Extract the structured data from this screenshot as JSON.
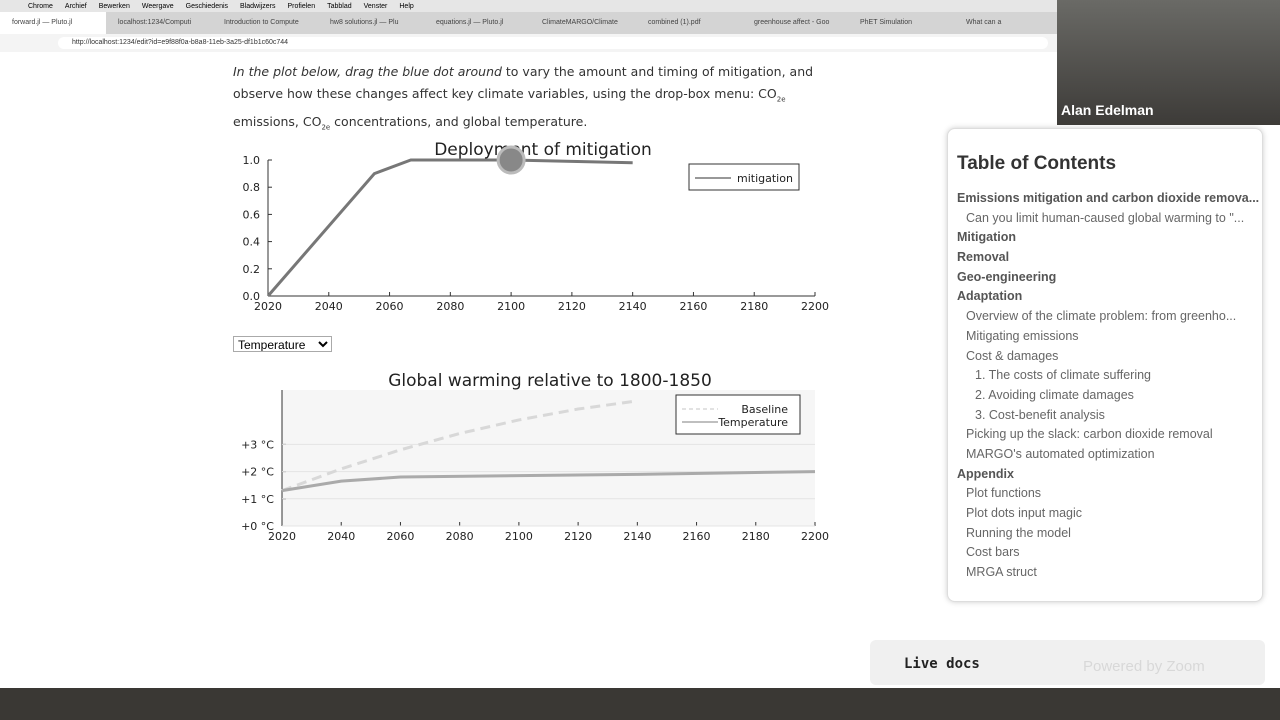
{
  "browser": {
    "menu": [
      "Chrome",
      "Archief",
      "Bewerken",
      "Weergave",
      "Geschiedenis",
      "Bladwijzers",
      "Profielen",
      "Tabblad",
      "Venster",
      "Help"
    ],
    "tabs": [
      "forward.jl — Pluto.jl",
      "localhost:1234/Computi",
      "Introduction to Compute",
      "hw8 solutions.jl — Plu",
      "equations.jl — Pluto.jl",
      "ClimateMARGO/Climate",
      "combined (1).pdf",
      "greenhouse affect - Goo",
      "PhET Simulation",
      "What can a"
    ],
    "url": "http://localhost:1234/edit?id=e9f88f0a-b8a8-11eb-3a25-df1b1c60c744"
  },
  "intro": {
    "italic": "In the plot below, drag the blue dot around",
    "text1": " to vary the amount and timing of mitigation, and observe how these changes affect key climate variables, using the drop-box menu: CO",
    "sub1": "2e",
    "text2": " emissions, CO",
    "sub2": "2e",
    "text3": " concentrations, and global temperature."
  },
  "plot1": {
    "type": "line",
    "title": "Deployment of mitigation",
    "series": [
      {
        "name": "mitigation",
        "color": "#777777",
        "x": [
          2020,
          2055,
          2067,
          2100,
          2140
        ],
        "values": [
          0,
          0.9,
          1.0,
          1.0,
          0.98
        ]
      }
    ],
    "handle": {
      "x": 2100,
      "y": 1.0
    },
    "xlim": [
      2020,
      2200
    ],
    "xticks": [
      2020,
      2040,
      2060,
      2080,
      2100,
      2120,
      2140,
      2160,
      2180,
      2200
    ],
    "ylim": [
      0,
      1.0
    ],
    "yticks": [
      {
        "value": 0,
        "label": "0.0"
      },
      0.2,
      0.4,
      0.6,
      0.8,
      {
        "value": 1,
        "label": "1.0"
      }
    ]
  },
  "dropdown": {
    "selected": "Temperature"
  },
  "plot2": {
    "type": "line",
    "title": "Global warming relative to 1800-1850",
    "series": [
      {
        "name": "Baseline",
        "color": "#d8d8d8",
        "dashed": true,
        "x": [
          2020,
          2040,
          2060,
          2080,
          2100,
          2120,
          2140
        ],
        "values": [
          1.3,
          2.1,
          2.8,
          3.4,
          3.9,
          4.3,
          4.6
        ]
      },
      {
        "name": "Temperature",
        "color": "#aaaaaa",
        "x": [
          2020,
          2040,
          2060,
          2100,
          2140,
          2200
        ],
        "values": [
          1.3,
          1.65,
          1.8,
          1.85,
          1.9,
          2.0
        ]
      }
    ],
    "xlim": [
      2020,
      2200
    ],
    "xticks": [
      2020,
      2040,
      2060,
      2080,
      2100,
      2120,
      2140,
      2160,
      2180,
      2200
    ],
    "ylim": [
      0,
      5
    ],
    "yticks": [
      {
        "value": 0,
        "label": "+0 °C"
      },
      {
        "value": 1,
        "label": "+1 °C"
      },
      {
        "value": 2,
        "label": "+2 °C"
      },
      {
        "value": 3,
        "label": "+3 °C"
      }
    ]
  },
  "toc": {
    "title": "Table of Contents",
    "items": [
      {
        "text": "Emissions mitigation and carbon dioxide remova...",
        "level": 1
      },
      {
        "text": "Can you limit human-caused global warming to \"...",
        "level": 2
      },
      {
        "text": "Mitigation",
        "level": 1
      },
      {
        "text": "Removal",
        "level": 1
      },
      {
        "text": "Geo-engineering",
        "level": 1
      },
      {
        "text": "Adaptation",
        "level": 1
      },
      {
        "text": "Overview of the climate problem: from greenho...",
        "level": 2
      },
      {
        "text": "Mitigating emissions",
        "level": 2
      },
      {
        "text": "Cost & damages",
        "level": 2
      },
      {
        "text": "1. The costs of climate suffering",
        "level": 3
      },
      {
        "text": "2. Avoiding climate damages",
        "level": 3
      },
      {
        "text": "3. Cost-benefit analysis",
        "level": 3
      },
      {
        "text": "Picking up the slack: carbon dioxide removal",
        "level": 2
      },
      {
        "text": "MARGO's automated optimization",
        "level": 2
      },
      {
        "text": "Appendix",
        "level": 1
      },
      {
        "text": "Plot functions",
        "level": 2
      },
      {
        "text": "Plot dots input magic",
        "level": 2
      },
      {
        "text": "Running the model",
        "level": 2
      },
      {
        "text": "Cost bars",
        "level": 2
      },
      {
        "text": "MRGA struct",
        "level": 2
      }
    ]
  },
  "video": {
    "name": "Alan Edelman"
  },
  "live_docs": "Live docs",
  "zoom": "Powered by Zoom"
}
